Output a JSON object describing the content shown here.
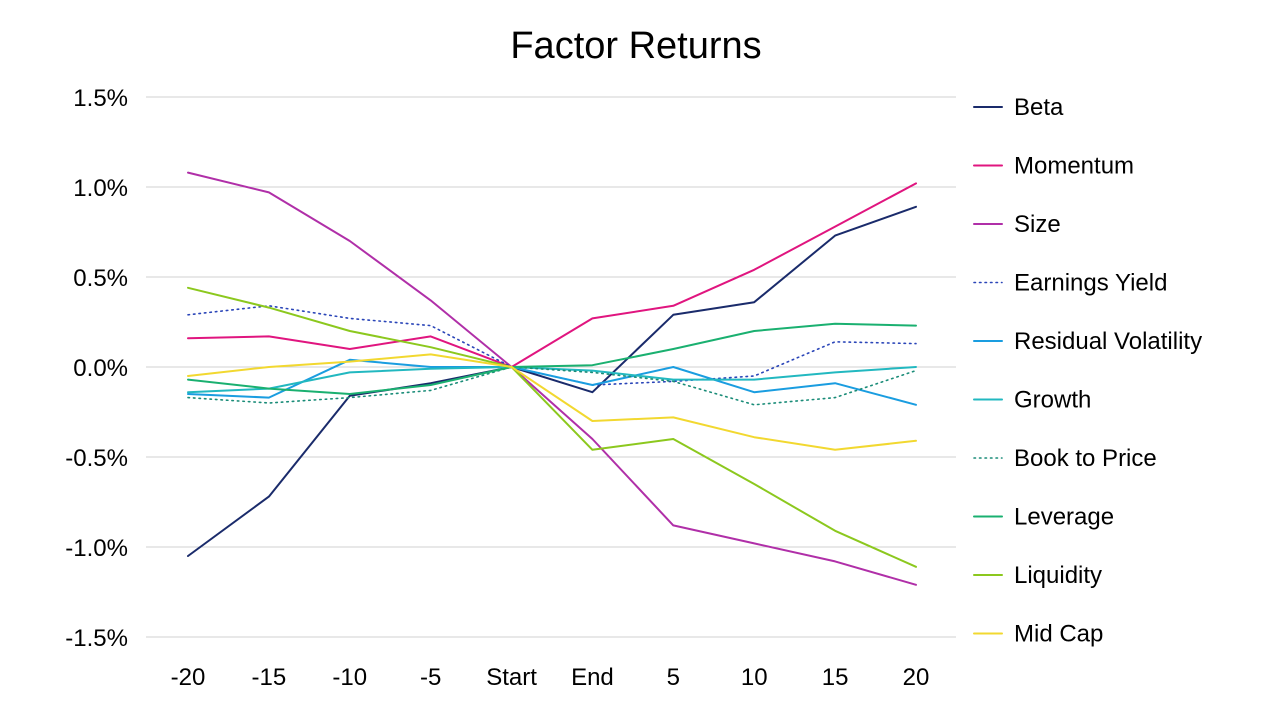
{
  "chart_data": {
    "type": "line",
    "title": "Factor Returns",
    "xlabel": "",
    "ylabel": "",
    "categories": [
      "-20",
      "-15",
      "-10",
      "-5",
      "Start",
      "End",
      "5",
      "10",
      "15",
      "20"
    ],
    "y_ticks": [
      "1.5%",
      "1.0%",
      "0.5%",
      "0.0%",
      "-0.5%",
      "-1.0%",
      "-1.5%"
    ],
    "ylim": [
      -1.5,
      1.5
    ],
    "y_unit": "%",
    "grid": "horizontal",
    "legend_position": "right",
    "series": [
      {
        "name": "Beta",
        "color": "#1a2b6b",
        "dash": "solid",
        "values": [
          -1.05,
          -0.72,
          -0.16,
          -0.09,
          0.0,
          -0.14,
          0.29,
          0.36,
          0.73,
          0.89
        ]
      },
      {
        "name": "Momentum",
        "color": "#e0157f",
        "dash": "solid",
        "values": [
          0.16,
          0.17,
          0.1,
          0.17,
          0.0,
          0.27,
          0.34,
          0.54,
          0.78,
          1.02
        ]
      },
      {
        "name": "Size",
        "color": "#b02fa8",
        "dash": "solid",
        "values": [
          1.08,
          0.97,
          0.7,
          0.37,
          0.0,
          -0.4,
          -0.88,
          -0.98,
          -1.08,
          -1.21
        ]
      },
      {
        "name": "Earnings Yield",
        "color": "#2a45b8",
        "dash": "dotted",
        "values": [
          0.29,
          0.34,
          0.27,
          0.23,
          0.0,
          -0.1,
          -0.08,
          -0.05,
          0.14,
          0.13
        ]
      },
      {
        "name": "Residual Volatility",
        "color": "#1a9de0",
        "dash": "solid",
        "values": [
          -0.15,
          -0.17,
          0.04,
          0.0,
          0.0,
          -0.1,
          0.0,
          -0.14,
          -0.09,
          -0.21
        ]
      },
      {
        "name": "Growth",
        "color": "#22b8c0",
        "dash": "solid",
        "values": [
          -0.14,
          -0.12,
          -0.03,
          -0.01,
          0.0,
          -0.02,
          -0.07,
          -0.07,
          -0.03,
          0.0
        ]
      },
      {
        "name": "Book to Price",
        "color": "#1a8c78",
        "dash": "dotted",
        "values": [
          -0.17,
          -0.2,
          -0.17,
          -0.13,
          0.0,
          -0.03,
          -0.08,
          -0.21,
          -0.17,
          -0.02
        ]
      },
      {
        "name": "Leverage",
        "color": "#1ab070",
        "dash": "solid",
        "values": [
          -0.07,
          -0.12,
          -0.15,
          -0.1,
          0.0,
          0.01,
          0.1,
          0.2,
          0.24,
          0.23
        ]
      },
      {
        "name": "Liquidity",
        "color": "#8cc81e",
        "dash": "solid",
        "values": [
          0.44,
          0.33,
          0.2,
          0.11,
          0.0,
          -0.46,
          -0.4,
          -0.65,
          -0.91,
          -1.11
        ]
      },
      {
        "name": "Mid Cap",
        "color": "#f2d830",
        "dash": "solid",
        "values": [
          -0.05,
          0.0,
          0.03,
          0.07,
          0.0,
          -0.3,
          -0.28,
          -0.39,
          -0.46,
          -0.41
        ]
      }
    ]
  }
}
